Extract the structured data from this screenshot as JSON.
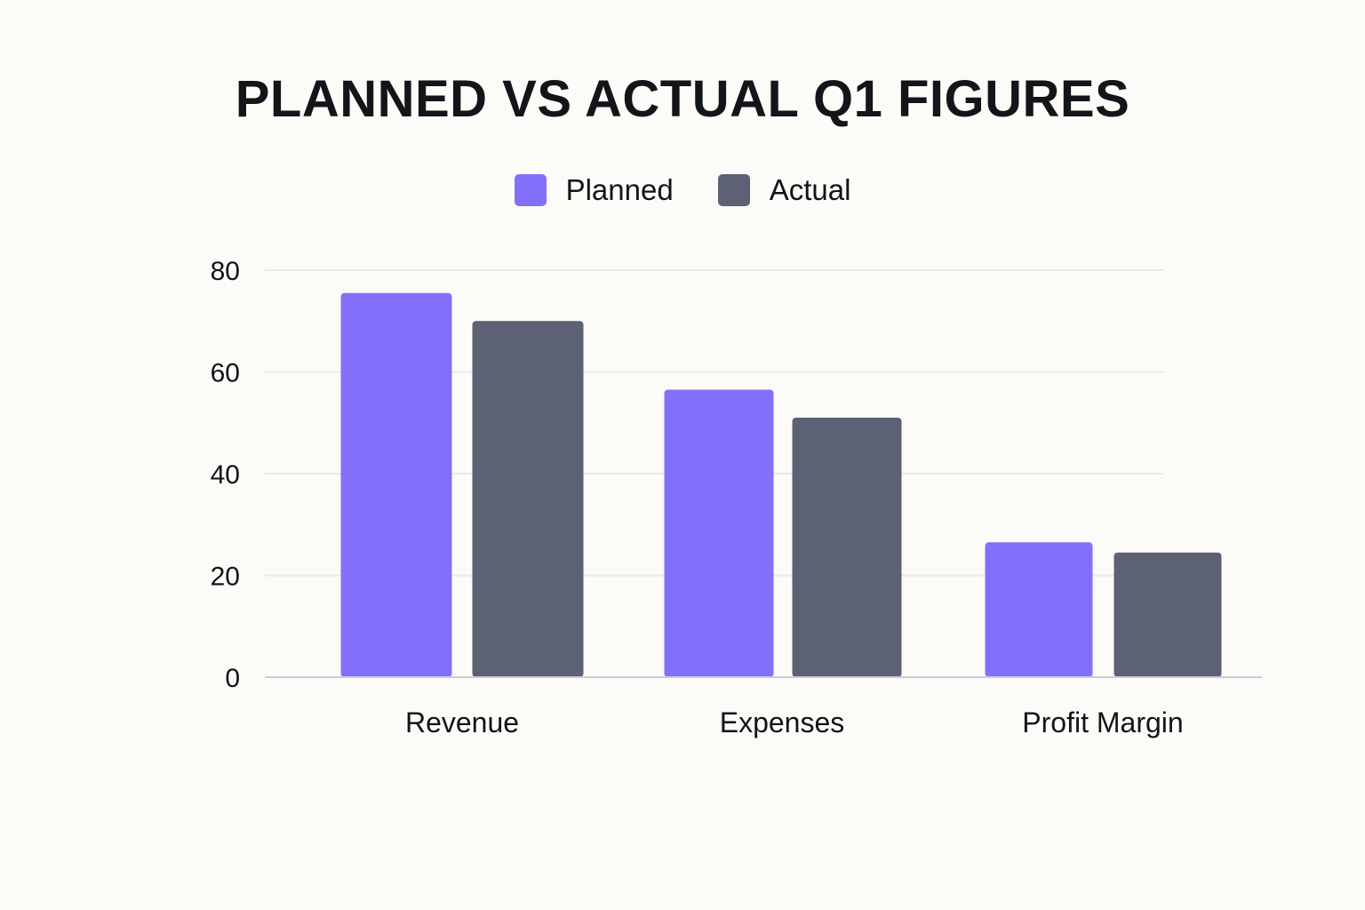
{
  "chart_data": {
    "type": "bar",
    "title": "PLANNED VS ACTUAL Q1 FIGURES",
    "categories": [
      "Revenue",
      "Expenses",
      "Profit Margin"
    ],
    "series": [
      {
        "name": "Planned",
        "values": [
          75.5,
          56.5,
          26.5
        ],
        "color": "#8270fb"
      },
      {
        "name": "Actual",
        "values": [
          70,
          51,
          24.5
        ],
        "color": "#5c6273"
      }
    ],
    "ylim": [
      0,
      80
    ],
    "yticks": [
      "0",
      "20",
      "40",
      "60",
      "80"
    ],
    "grid": true,
    "legend_position": "top-center"
  },
  "colors": {
    "background": "#fcfbf8",
    "grid": "#e9e8eb",
    "baseline": "#c9cbe0"
  }
}
